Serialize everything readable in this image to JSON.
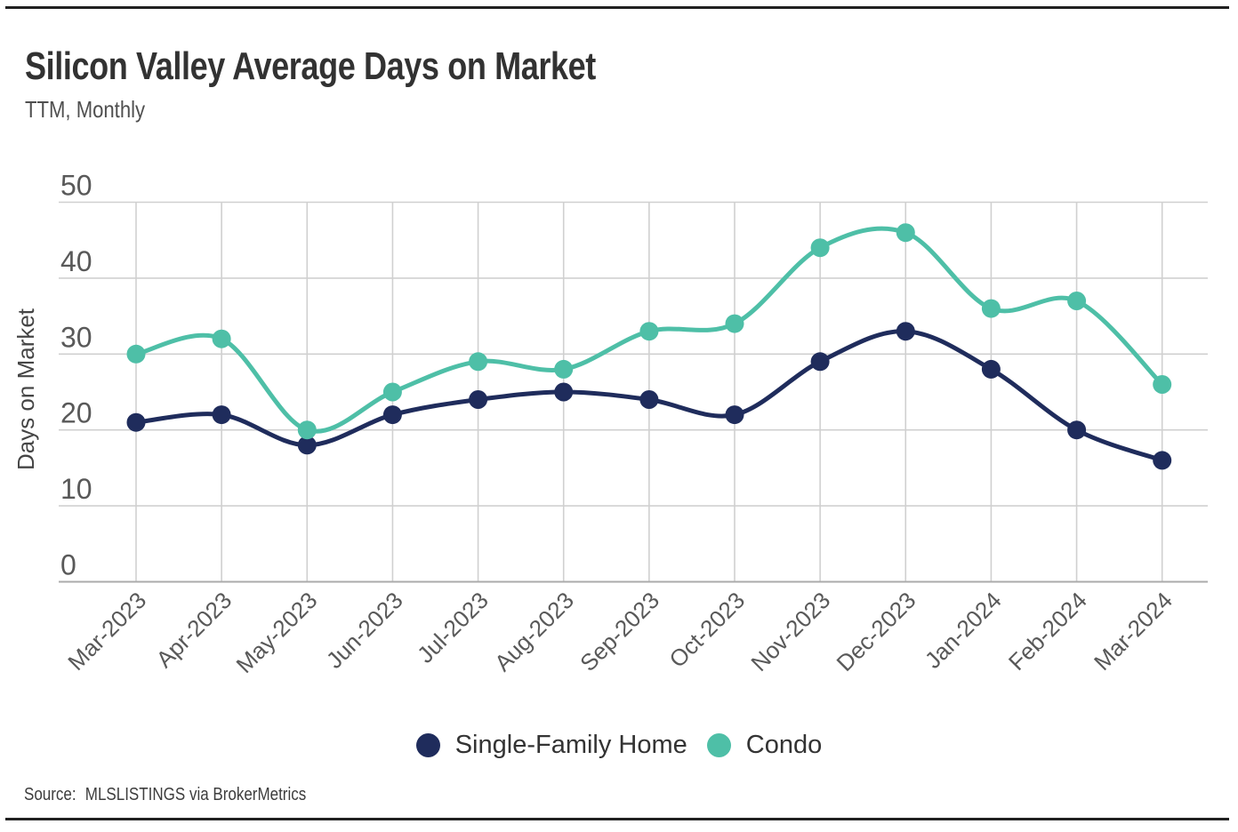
{
  "page": {
    "title": "Silicon Valley Average Days on Market",
    "subtitle": "TTM, Monthly",
    "source_label": "Source:",
    "source_value": "MLSLISTINGS via BrokerMetrics"
  },
  "colors": {
    "single_family_home": "#1f2c5c",
    "condo": "#4ebfa7",
    "gridline": "#d0d0d0",
    "zero_axis": "#ababab",
    "tick_label": "#595959",
    "axis_title": "#454545",
    "title_text": "#323232",
    "rule": "#212121"
  },
  "chart_data": {
    "type": "line",
    "title": "Silicon Valley Average Days on Market",
    "subtitle": "TTM, Monthly",
    "xlabel": "",
    "ylabel": "Days on Market",
    "categories": [
      "Mar-2023",
      "Apr-2023",
      "May-2023",
      "Jun-2023",
      "Jul-2023",
      "Aug-2023",
      "Sep-2023",
      "Oct-2023",
      "Nov-2023",
      "Dec-2023",
      "Jan-2024",
      "Feb-2024",
      "Mar-2024"
    ],
    "series": [
      {
        "name": "Single-Family Home",
        "color": "#1f2c5c",
        "values": [
          21,
          22,
          18,
          22,
          24,
          25,
          24,
          22,
          29,
          33,
          28,
          20,
          16
        ]
      },
      {
        "name": "Condo",
        "color": "#4ebfa7",
        "values": [
          30,
          32,
          20,
          25,
          29,
          28,
          33,
          34,
          44,
          46,
          36,
          37,
          26
        ]
      }
    ],
    "ylim": [
      0,
      50
    ],
    "yticks": [
      0,
      10,
      20,
      30,
      40,
      50
    ],
    "grid": true,
    "marker": "circle",
    "line_style": "smooth",
    "legend_position": "bottom"
  }
}
